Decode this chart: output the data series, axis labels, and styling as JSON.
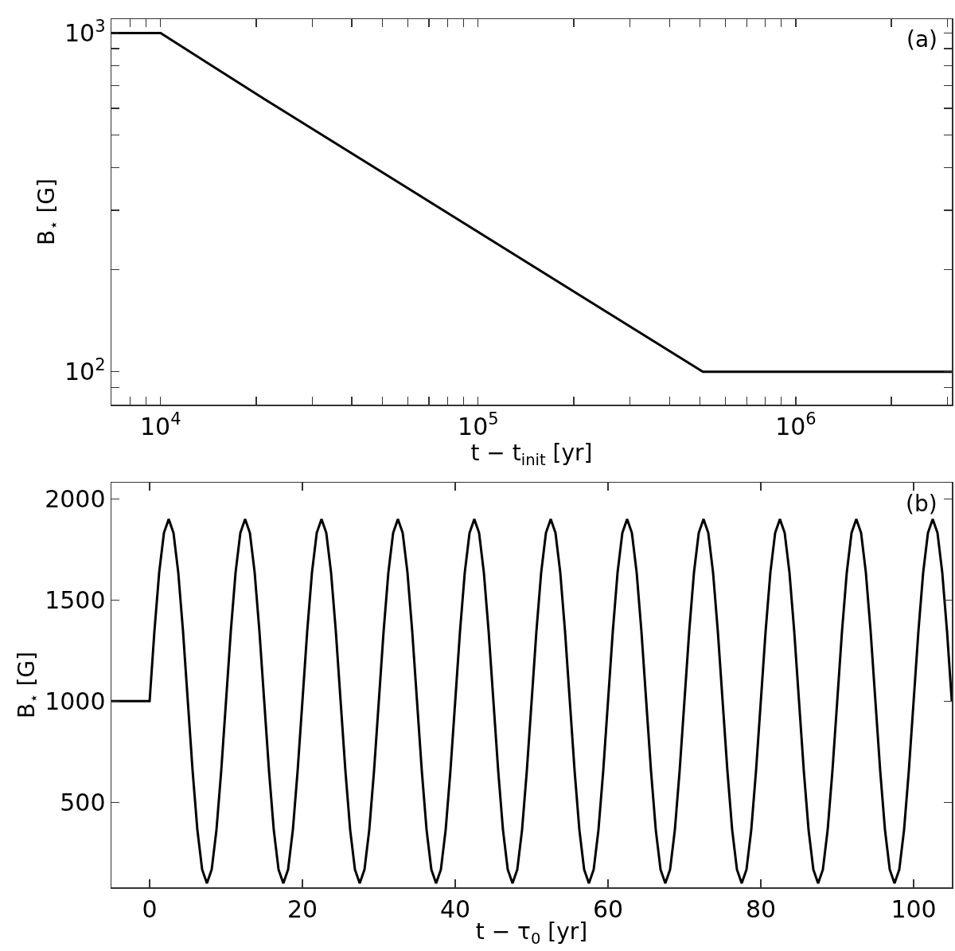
{
  "chart_data": [
    {
      "type": "line",
      "xlabel": "t − t$_{init}$ [yr]",
      "ylabel": "B$_{⋆}$ [G]",
      "log": "xy",
      "annotations": [
        "(a)"
      ],
      "xlim": [
        7000,
        3100000
      ],
      "ylim": [
        80,
        1100
      ],
      "xticks": [
        {
          "value": 8000,
          "label": null
        },
        {
          "value": 9000,
          "label": null
        },
        {
          "value": 10000,
          "label": "10$^{4}$"
        },
        {
          "value": 20000,
          "label": null
        },
        {
          "value": 30000,
          "label": null
        },
        {
          "value": 40000,
          "label": null
        },
        {
          "value": 50000,
          "label": null
        },
        {
          "value": 60000,
          "label": null
        },
        {
          "value": 70000,
          "label": null
        },
        {
          "value": 80000,
          "label": null
        },
        {
          "value": 90000,
          "label": null
        },
        {
          "value": 100000,
          "label": "10$^{5}$"
        },
        {
          "value": 200000,
          "label": null
        },
        {
          "value": 300000,
          "label": null
        },
        {
          "value": 400000,
          "label": null
        },
        {
          "value": 500000,
          "label": null
        },
        {
          "value": 600000,
          "label": null
        },
        {
          "value": 700000,
          "label": null
        },
        {
          "value": 800000,
          "label": null
        },
        {
          "value": 900000,
          "label": null
        },
        {
          "value": 1000000,
          "label": "10$^{6}$"
        },
        {
          "value": 2000000,
          "label": null
        },
        {
          "value": 3000000,
          "label": null
        }
      ],
      "yticks": [
        {
          "value": 90,
          "label": null
        },
        {
          "value": 100,
          "label": "10$^{2}$"
        },
        {
          "value": 200,
          "label": null
        },
        {
          "value": 300,
          "label": null
        },
        {
          "value": 400,
          "label": null
        },
        {
          "value": 500,
          "label": null
        },
        {
          "value": 600,
          "label": null
        },
        {
          "value": 700,
          "label": null
        },
        {
          "value": 800,
          "label": null
        },
        {
          "value": 900,
          "label": null
        },
        {
          "value": 1000,
          "label": "10$^{3}$"
        }
      ],
      "series": [
        {
          "color": "#000000",
          "x": [
            7000,
            10000,
            21000,
            510000,
            3100000
          ],
          "values": [
            1000,
            1000,
            643,
            100,
            100
          ]
        }
      ]
    },
    {
      "type": "line",
      "xlabel": "t − τ$_{0}$ [yr]",
      "ylabel": "B$_{⋆}$ [G]",
      "annotations": [
        "(b)"
      ],
      "xlim": [
        -5,
        105
      ],
      "ylim": [
        80,
        2080
      ],
      "xticks": [
        0,
        20,
        40,
        60,
        80,
        100
      ],
      "yticks": [
        500,
        1000,
        1500,
        2000
      ],
      "series": [
        {
          "color": "#000000",
          "x": [
            -5,
            0,
            0.625,
            1.25,
            1.875,
            2.5,
            3.125,
            3.75,
            4.375,
            5,
            5.625,
            6.25,
            6.875,
            7.5,
            8.125,
            8.75,
            9.375,
            10,
            10.625,
            11.25,
            11.875,
            12.5,
            13.125,
            13.75,
            14.375,
            15,
            15.625,
            16.25,
            16.875,
            17.5,
            18.125,
            18.75,
            19.375,
            20,
            20.625,
            21.25,
            21.875,
            22.5,
            23.125,
            23.75,
            24.375,
            25,
            25.625,
            26.25,
            26.875,
            27.5,
            28.125,
            28.75,
            29.375,
            30,
            30.625,
            31.25,
            31.875,
            32.5,
            33.125,
            33.75,
            34.375,
            35,
            35.625,
            36.25,
            36.875,
            37.5,
            38.125,
            38.75,
            39.375,
            40,
            40.625,
            41.25,
            41.875,
            42.5,
            43.125,
            43.75,
            44.375,
            45,
            45.625,
            46.25,
            46.875,
            47.5,
            48.125,
            48.75,
            49.375,
            50,
            50.625,
            51.25,
            51.875,
            52.5,
            53.125,
            53.75,
            54.375,
            55,
            55.625,
            56.25,
            56.875,
            57.5,
            58.125,
            58.75,
            59.375,
            60,
            60.625,
            61.25,
            61.875,
            62.5,
            63.125,
            63.75,
            64.375,
            65,
            65.625,
            66.25,
            66.875,
            67.5,
            68.125,
            68.75,
            69.375,
            70,
            70.625,
            71.25,
            71.875,
            72.5,
            73.125,
            73.75,
            74.375,
            75,
            75.625,
            76.25,
            76.875,
            77.5,
            78.125,
            78.75,
            79.375,
            80,
            80.625,
            81.25,
            81.875,
            82.5,
            83.125,
            83.75,
            84.375,
            85,
            85.625,
            86.25,
            86.875,
            87.5,
            88.125,
            88.75,
            89.375,
            90,
            90.625,
            91.25,
            91.875,
            92.5,
            93.125,
            93.75,
            94.375,
            95,
            95.625,
            96.25,
            96.875,
            97.5,
            98.125,
            98.75,
            99.375,
            100,
            100.625,
            101.25,
            101.875,
            102.5,
            103.125,
            103.75,
            104.375,
            105
          ],
          "values": [
            1000,
            1000,
            1344,
            1636,
            1832,
            1900,
            1832,
            1636,
            1344,
            1000,
            656,
            364,
            168,
            100,
            168,
            364,
            656,
            1000,
            1344,
            1636,
            1832,
            1900,
            1832,
            1636,
            1344,
            1000,
            656,
            364,
            168,
            100,
            168,
            364,
            656,
            1000,
            1344,
            1636,
            1832,
            1900,
            1832,
            1636,
            1344,
            1000,
            656,
            364,
            168,
            100,
            168,
            364,
            656,
            1000,
            1344,
            1636,
            1832,
            1900,
            1832,
            1636,
            1344,
            1000,
            656,
            364,
            168,
            100,
            168,
            364,
            656,
            1000,
            1344,
            1636,
            1832,
            1900,
            1832,
            1636,
            1344,
            1000,
            656,
            364,
            168,
            100,
            168,
            364,
            656,
            1000,
            1344,
            1636,
            1832,
            1900,
            1832,
            1636,
            1344,
            1000,
            656,
            364,
            168,
            100,
            168,
            364,
            656,
            1000,
            1344,
            1636,
            1832,
            1900,
            1832,
            1636,
            1344,
            1000,
            656,
            364,
            168,
            100,
            168,
            364,
            656,
            1000,
            1344,
            1636,
            1832,
            1900,
            1832,
            1636,
            1344,
            1000,
            656,
            364,
            168,
            100,
            168,
            364,
            656,
            1000,
            1344,
            1636,
            1832,
            1900,
            1832,
            1636,
            1344,
            1000,
            656,
            364,
            168,
            100,
            168,
            364,
            656,
            1000,
            1344,
            1636,
            1832,
            1900,
            1832,
            1636,
            1344,
            1000,
            656,
            364,
            168,
            100,
            168,
            364,
            656,
            1000,
            1344,
            1636,
            1832,
            1900,
            1832,
            1636,
            1344,
            1000
          ]
        }
      ]
    }
  ]
}
